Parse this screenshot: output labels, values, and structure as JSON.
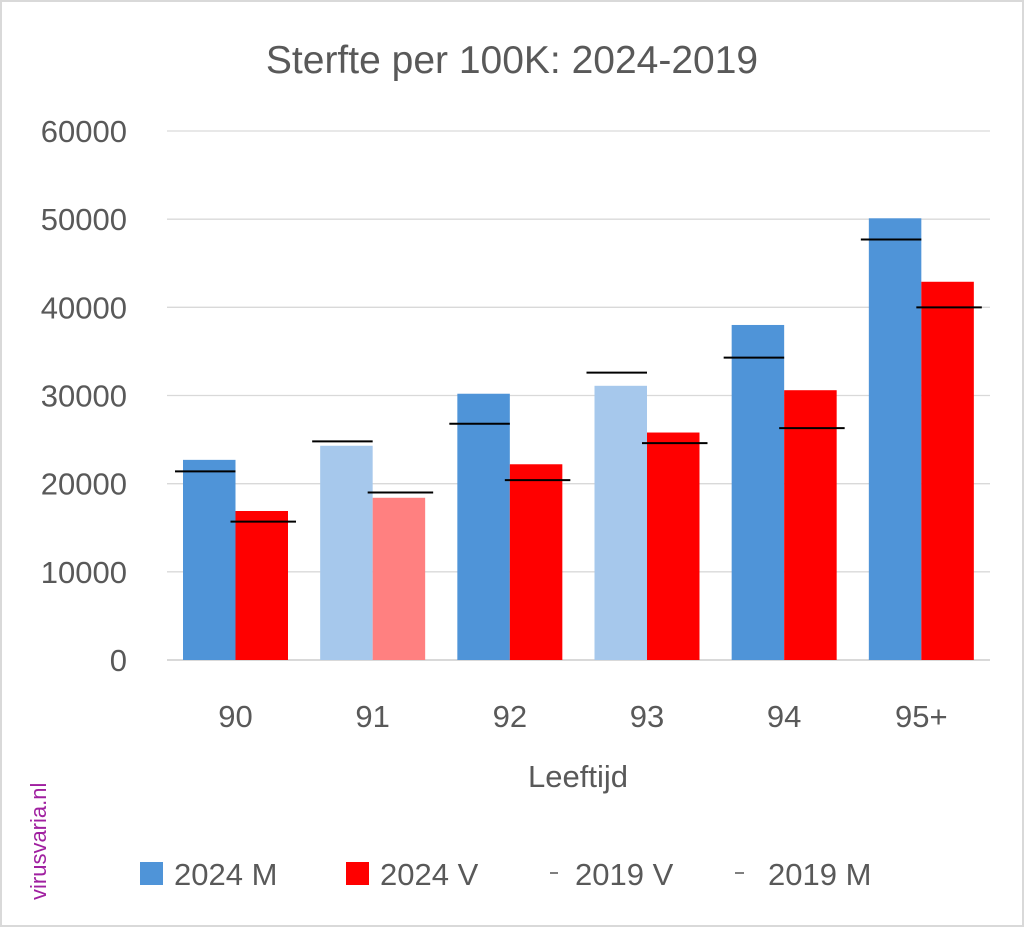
{
  "watermark": "virusvaria.nl",
  "colors": {
    "m_2024": "#4f94d8",
    "m_2024_light": "#a6c8ec",
    "v_2024": "#ff0000",
    "v_2024_light": "#ff8080",
    "ref_line": "#000000",
    "grid": "#d9d9d9",
    "text": "#595959",
    "watermark": "#a020a0"
  },
  "chart_data": {
    "type": "bar",
    "title": "Sterfte per 100K: 2024-2019",
    "xlabel": "Leeftijd",
    "ylabel": "",
    "ylim": [
      0,
      60000
    ],
    "yticks": [
      "0",
      "10000",
      "20000",
      "30000",
      "40000",
      "50000",
      "60000"
    ],
    "ytick_values": [
      0,
      10000,
      20000,
      30000,
      40000,
      50000,
      60000
    ],
    "grid": true,
    "categories": [
      "90",
      "91",
      "92",
      "93",
      "94",
      "95+"
    ],
    "series": [
      {
        "name": "2024 M",
        "kind": "bar",
        "color": "#4f94d8",
        "values": [
          22700,
          24300,
          30200,
          31100,
          38000,
          50100
        ],
        "highlight_light": [
          false,
          true,
          false,
          true,
          false,
          false
        ]
      },
      {
        "name": "2024 V",
        "kind": "bar",
        "color": "#ff0000",
        "values": [
          16900,
          18400,
          22200,
          25800,
          30600,
          42900
        ],
        "highlight_light": [
          false,
          true,
          false,
          false,
          false,
          false
        ]
      },
      {
        "name": "2019 V",
        "kind": "marker-line",
        "color": "#000000",
        "values": [
          15700,
          19000,
          20400,
          24600,
          26300,
          40000
        ]
      },
      {
        "name": "2019 M",
        "kind": "marker-line",
        "color": "#000000",
        "values": [
          21400,
          24800,
          26800,
          32600,
          34300,
          47700
        ]
      }
    ],
    "legend": {
      "position": "bottom",
      "entries": [
        "2024 M",
        "2024 V",
        "2019 V",
        "2019 M"
      ]
    }
  }
}
